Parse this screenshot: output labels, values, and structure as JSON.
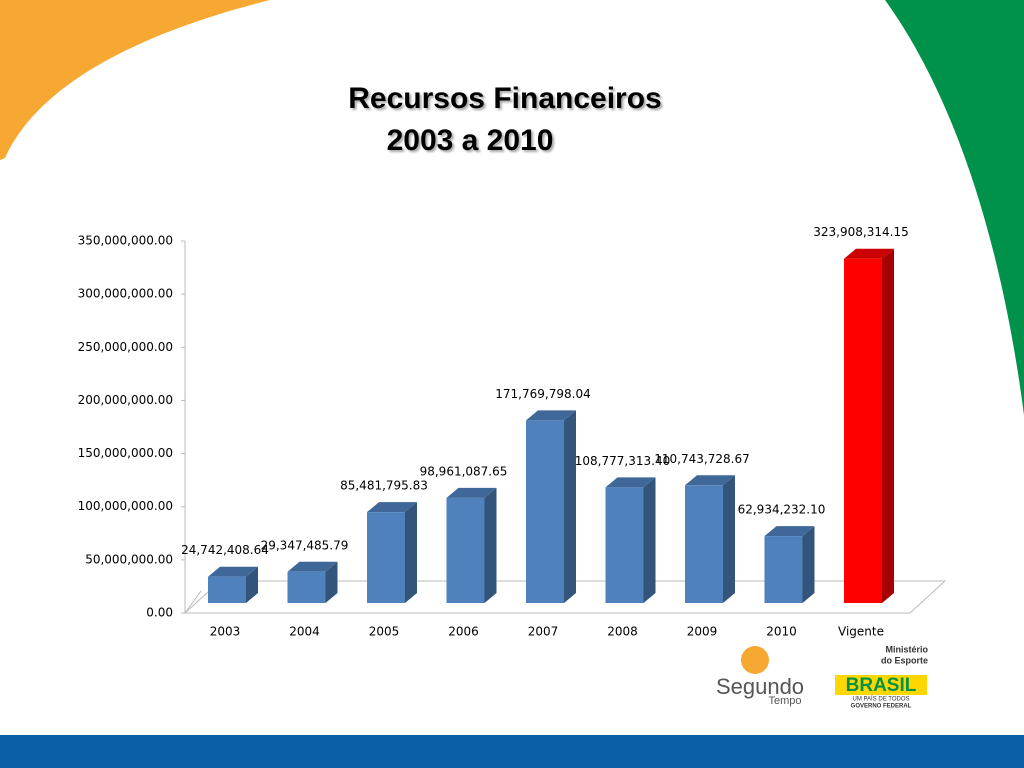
{
  "chart_data": {
    "type": "bar3d",
    "title": "Recursos Financeiros",
    "subtitle": "2003 a 2010",
    "categories": [
      "2003",
      "2004",
      "2005",
      "2006",
      "2007",
      "2008",
      "2009",
      "2010",
      "Vigente"
    ],
    "values": [
      24742408.64,
      29347485.79,
      85481795.83,
      98961087.65,
      171769798.04,
      108777313.4,
      110743728.67,
      62934232.1,
      323908314.15
    ],
    "value_labels": [
      "24,742,408.64",
      "29,347,485.79",
      "85,481,795.83",
      "98,961,087.65",
      "171,769,798.04",
      "108,777,313.40",
      "110,743,728.67",
      "62,934,232.10",
      "323,908,314.15"
    ],
    "colors": [
      "#4f81bd",
      "#4f81bd",
      "#4f81bd",
      "#4f81bd",
      "#4f81bd",
      "#4f81bd",
      "#4f81bd",
      "#4f81bd",
      "#ff0000"
    ],
    "ylim": [
      0,
      350000000
    ],
    "yticks": [
      {
        "value": 0,
        "label": "0.00"
      },
      {
        "value": 50000000,
        "label": "50,000,000.00"
      },
      {
        "value": 100000000,
        "label": "100,000,000.00"
      },
      {
        "value": 150000000,
        "label": "150,000,000.00"
      },
      {
        "value": 200000000,
        "label": "200,000,000.00"
      },
      {
        "value": 250000000,
        "label": "250,000,000.00"
      },
      {
        "value": 300000000,
        "label": "300,000,000.00"
      },
      {
        "value": 350000000,
        "label": "350,000,000.00"
      }
    ],
    "grid": false
  },
  "logos": {
    "segundo": "Segundo",
    "tempo": "Tempo",
    "ministerio": "Ministério",
    "esporte": "do Esporte",
    "brasil": "BRASIL",
    "motto": "UM PAÍS DE TODOS",
    "governo": "GOVERNO FEDERAL"
  }
}
